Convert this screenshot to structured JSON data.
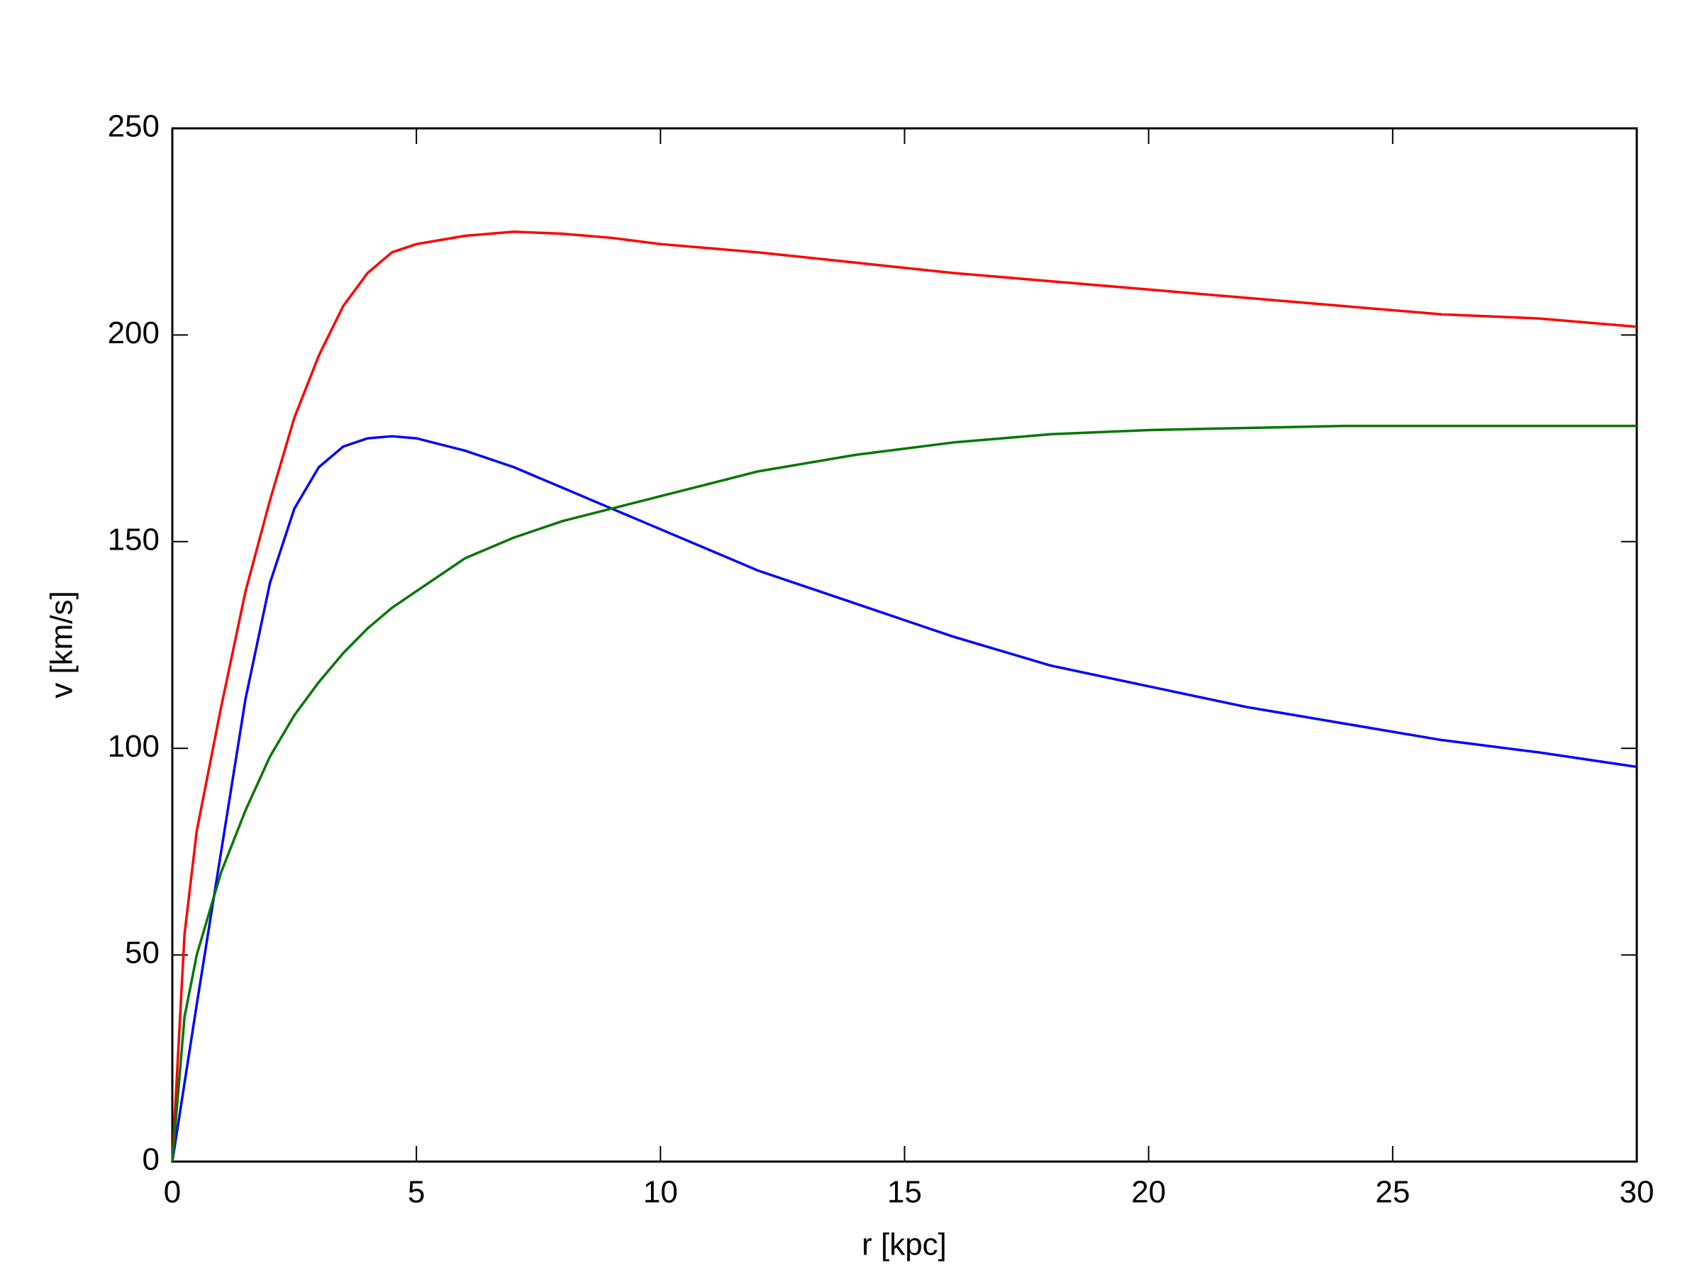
{
  "chart_data": {
    "type": "line",
    "xlabel": "r [kpc]",
    "ylabel": "v [km/s]",
    "x": [
      0,
      0.25,
      0.5,
      1,
      1.5,
      2,
      2.5,
      3,
      3.5,
      4,
      4.5,
      5,
      6,
      7,
      8,
      9,
      10,
      12,
      14,
      16,
      18,
      20,
      22,
      24,
      26,
      28,
      30
    ],
    "series": [
      {
        "color": "#ff0000",
        "values": [
          0,
          55,
          80,
          110,
          138,
          160,
          180,
          195,
          207,
          215,
          220,
          222,
          224,
          225,
          224.5,
          223.5,
          222,
          220,
          217.5,
          215,
          213,
          211,
          209,
          207,
          205,
          204,
          202
        ]
      },
      {
        "color": "#0000ff",
        "values": [
          0,
          19,
          38,
          75,
          112,
          140,
          158,
          168,
          173,
          175,
          175.5,
          175,
          172,
          168,
          163,
          158,
          153,
          143,
          135,
          127,
          120,
          115,
          110,
          106,
          102,
          99,
          95.5
        ]
      },
      {
        "color": "#007700",
        "values": [
          0,
          35,
          50,
          70,
          85,
          98,
          108,
          116,
          123,
          129,
          134,
          138,
          146,
          151,
          155,
          158,
          161,
          167,
          171,
          174,
          176,
          177,
          177.5,
          178,
          178,
          178,
          178
        ]
      }
    ],
    "xlim": [
      0,
      30
    ],
    "xticks": [
      0,
      5,
      10,
      15,
      20,
      25,
      30
    ],
    "ylim": [
      0,
      250
    ],
    "yticks": [
      0,
      50,
      100,
      150,
      200,
      250
    ],
    "grid": false
  }
}
